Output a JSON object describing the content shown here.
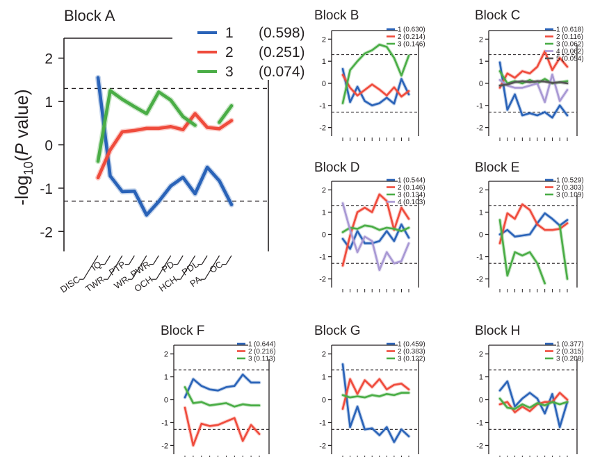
{
  "chart_data": [
    {
      "id": "A",
      "type": "line",
      "title": "Block A",
      "ylabel": "-log10(P value)",
      "ylim": [
        -2.3,
        2.3
      ],
      "yticks": [
        -2,
        -1,
        0,
        1,
        2
      ],
      "categories": [
        "DISC",
        "IQ",
        "TWR",
        "PTP",
        "WR",
        "PWR",
        "OCH",
        "PD",
        "HCH",
        "PDL",
        "PA",
        "OC"
      ],
      "threshold": 1.3,
      "series": [
        {
          "name": "1",
          "score": "(0.598)",
          "color": "#2a63b8",
          "values": [
            1.55,
            -0.72,
            -1.08,
            -1.07,
            -1.62,
            -1.31,
            -0.95,
            -0.75,
            -1.13,
            -0.52,
            -0.83,
            -1.38
          ]
        },
        {
          "name": "2",
          "score": "(0.251)",
          "color": "#ef4b3c",
          "values": [
            -0.76,
            -0.12,
            0.3,
            0.33,
            0.38,
            0.38,
            0.42,
            0.35,
            0.72,
            0.4,
            0.37,
            0.56
          ]
        },
        {
          "name": "3",
          "score": "(0.074)",
          "color": "#4aad46",
          "values": [
            -0.38,
            1.25,
            1.05,
            0.88,
            0.72,
            1.22,
            1.03,
            0.65,
            0.45,
            null,
            0.52,
            0.9
          ]
        }
      ]
    },
    {
      "id": "B",
      "type": "line",
      "title": "Block B",
      "ylim": [
        -2.2,
        2.2
      ],
      "yticks": [
        -2,
        -1,
        0,
        1,
        2
      ],
      "threshold": 1.3,
      "series": [
        {
          "name": "1",
          "score": "(0.630)",
          "color": "#2a63b8",
          "values": [
            0.65,
            -0.85,
            -0.15,
            -0.8,
            -1.0,
            -0.9,
            -0.65,
            -0.92,
            0.2,
            -0.5
          ]
        },
        {
          "name": "2",
          "score": "(0.214)",
          "color": "#ef4b3c",
          "values": [
            0.38,
            -0.2,
            -0.55,
            -0.3,
            -0.05,
            -0.28,
            -0.55,
            -0.18,
            -0.6,
            -0.35
          ]
        },
        {
          "name": "3",
          "score": "(0.146)",
          "color": "#4aad46",
          "values": [
            -0.9,
            0.6,
            1.0,
            1.35,
            1.5,
            1.75,
            1.65,
            1.15,
            0.35,
            1.25
          ]
        }
      ]
    },
    {
      "id": "C",
      "type": "line",
      "title": "Block C",
      "ylim": [
        -2.2,
        2.2
      ],
      "yticks": [
        -2,
        -1,
        0,
        1,
        2
      ],
      "threshold": 1.3,
      "series": [
        {
          "name": "1",
          "score": "(0.618)",
          "color": "#2a63b8",
          "values": [
            0.95,
            -1.2,
            -0.5,
            -1.45,
            -1.35,
            -1.45,
            -1.3,
            -1.55,
            -1.0,
            -1.45
          ]
        },
        {
          "name": "2",
          "score": "(0.116)",
          "color": "#ef4b3c",
          "values": [
            -0.2,
            0.45,
            0.25,
            0.55,
            0.45,
            0.75,
            1.45,
            0.6,
            1.15,
            0.75
          ]
        },
        {
          "name": "3",
          "score": "(0.062)",
          "color": "#4aad46",
          "values": [
            0.55,
            0.0,
            0.1,
            0.0,
            0.15,
            0.0,
            0.2,
            0.0,
            0.05,
            0.1
          ]
        },
        {
          "name": "4",
          "score": "(0.062)",
          "color": "#a898d4",
          "values": [
            0.15,
            -0.1,
            -0.2,
            -0.2,
            -0.1,
            0.0,
            -0.85,
            0.4,
            -0.8,
            -0.3
          ]
        },
        {
          "name": "5",
          "score": "(0.054)",
          "color": "#555555",
          "values": [
            -0.1,
            -0.05,
            0.05,
            0.1,
            0.05,
            0.1,
            0.08,
            0.02,
            0.05,
            0.0
          ]
        }
      ]
    },
    {
      "id": "D",
      "type": "line",
      "title": "Block D",
      "ylim": [
        -2.2,
        2.2
      ],
      "yticks": [
        -2,
        -1,
        0,
        1,
        2
      ],
      "threshold": 1.3,
      "series": [
        {
          "name": "1",
          "score": "(0.544)",
          "color": "#2a63b8",
          "values": [
            -0.2,
            -0.65,
            0.15,
            -0.4,
            -0.4,
            -0.3,
            0.15,
            -0.3,
            0.45,
            -0.15
          ]
        },
        {
          "name": "2",
          "score": "(0.146)",
          "color": "#ef4b3c",
          "values": [
            -1.4,
            -0.05,
            1.0,
            1.2,
            1.0,
            1.8,
            1.5,
            0.2,
            1.2,
            0.7
          ]
        },
        {
          "name": "3",
          "score": "(0.134)",
          "color": "#4aad46",
          "values": [
            0.1,
            0.3,
            0.25,
            0.4,
            0.35,
            0.2,
            0.3,
            0.25,
            0.15,
            0.3
          ]
        },
        {
          "name": "4",
          "score": "(0.103)",
          "color": "#a898d4",
          "values": [
            1.4,
            0.2,
            -0.8,
            -0.1,
            -0.3,
            -1.6,
            -0.8,
            -1.3,
            -1.2,
            -0.4
          ]
        }
      ]
    },
    {
      "id": "E",
      "type": "line",
      "title": "Block E",
      "ylim": [
        -2.2,
        2.2
      ],
      "yticks": [
        -2,
        -1,
        0,
        1,
        2
      ],
      "threshold": 1.3,
      "series": [
        {
          "name": "1",
          "score": "(0.529)",
          "color": "#2a63b8",
          "values": [
            0.0,
            0.2,
            -0.1,
            -0.05,
            0.0,
            0.5,
            0.95,
            0.7,
            0.4,
            0.65
          ]
        },
        {
          "name": "2",
          "score": "(0.303)",
          "color": "#ef4b3c",
          "values": [
            -0.4,
            0.95,
            0.7,
            1.35,
            1.1,
            0.45,
            0.2,
            0.2,
            0.25,
            0.5
          ]
        },
        {
          "name": "3",
          "score": "(0.109)",
          "color": "#4aad46",
          "values": [
            0.65,
            -1.85,
            -0.8,
            -0.95,
            -0.8,
            -1.3,
            -2.2,
            null,
            0.4,
            -2.0
          ]
        }
      ]
    },
    {
      "id": "F",
      "type": "line",
      "title": "Block F",
      "ylim": [
        -2.2,
        2.2
      ],
      "yticks": [
        -2,
        -1,
        0,
        1,
        2
      ],
      "threshold": 1.3,
      "series": [
        {
          "name": "1",
          "score": "(0.644)",
          "color": "#2a63b8",
          "values": [
            0.1,
            0.9,
            0.6,
            0.45,
            0.4,
            0.55,
            0.6,
            1.1,
            0.75,
            0.75
          ]
        },
        {
          "name": "2",
          "score": "(0.216)",
          "color": "#ef4b3c",
          "values": [
            -0.35,
            -2.0,
            -1.05,
            -1.15,
            -1.1,
            -0.95,
            -0.8,
            -1.8,
            -1.1,
            -1.5
          ]
        },
        {
          "name": "3",
          "score": "(0.113)",
          "color": "#4aad46",
          "values": [
            0.55,
            -0.15,
            -0.1,
            -0.25,
            -0.2,
            -0.15,
            -0.3,
            -0.2,
            -0.25,
            -0.25
          ]
        }
      ]
    },
    {
      "id": "G",
      "type": "line",
      "title": "Block G",
      "ylim": [
        -2.2,
        2.2
      ],
      "yticks": [
        -2,
        -1,
        0,
        1,
        2
      ],
      "threshold": 1.3,
      "series": [
        {
          "name": "1",
          "score": "(0.459)",
          "color": "#2a63b8",
          "values": [
            1.55,
            -1.2,
            -0.3,
            -1.3,
            -1.25,
            -1.55,
            -1.2,
            -1.85,
            -1.3,
            -1.6
          ]
        },
        {
          "name": "2",
          "score": "(0.383)",
          "color": "#ef4b3c",
          "values": [
            -0.4,
            0.9,
            0.25,
            0.85,
            0.55,
            0.9,
            0.45,
            0.65,
            0.7,
            0.45
          ]
        },
        {
          "name": "3",
          "score": "(0.122)",
          "color": "#4aad46",
          "values": [
            0.2,
            0.1,
            0.15,
            0.1,
            0.2,
            0.15,
            0.25,
            0.2,
            0.3,
            0.3
          ]
        }
      ]
    },
    {
      "id": "H",
      "type": "line",
      "title": "Block H",
      "ylim": [
        -2.2,
        2.2
      ],
      "yticks": [
        -2,
        -1,
        0,
        1,
        2
      ],
      "threshold": 1.3,
      "series": [
        {
          "name": "1",
          "score": "(0.377)",
          "color": "#2a63b8",
          "values": [
            0.4,
            0.8,
            -0.3,
            0.05,
            0.3,
            0.05,
            -0.6,
            0.25,
            -1.2,
            -0.1
          ]
        },
        {
          "name": "2",
          "score": "(0.315)",
          "color": "#ef4b3c",
          "values": [
            -0.2,
            -0.1,
            -0.55,
            -0.3,
            -0.5,
            -0.2,
            -0.1,
            -0.1,
            0.3,
            0.0
          ]
        },
        {
          "name": "3",
          "score": "(0.208)",
          "color": "#4aad46",
          "values": [
            0.05,
            -0.35,
            -0.4,
            -0.2,
            -0.35,
            -0.15,
            -0.25,
            -0.1,
            -0.2,
            -0.1
          ]
        }
      ]
    }
  ]
}
